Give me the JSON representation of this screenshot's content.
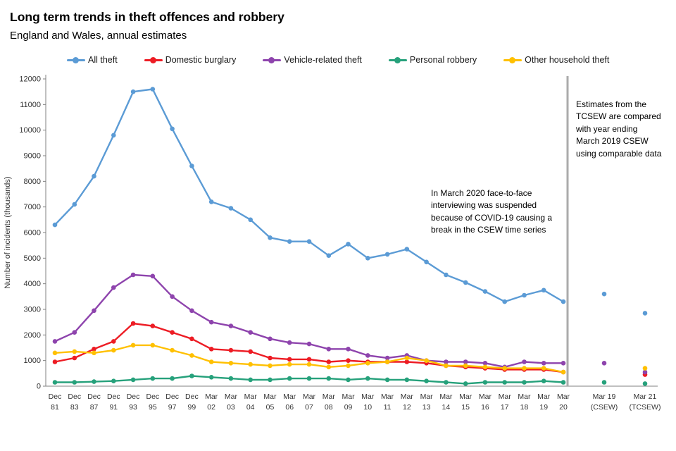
{
  "header": {
    "title": "Long term trends in theft offences and robbery",
    "subtitle": "England and Wales, annual estimates"
  },
  "annotations": {
    "covid_break": "In March 2020 face-to-face interviewing was suspended because of COVID-19 causing a break in the CSEW time series",
    "tcsew_note": "Estimates from the TCSEW are compared with year ending March 2019 CSEW using comparable data"
  },
  "chart_data": {
    "type": "line",
    "title": "Long term trends in theft offences and robbery",
    "subtitle": "England and Wales, annual estimates",
    "xlabel": "",
    "ylabel": "Number of incidents (thousands)",
    "ylim": [
      0,
      12000
    ],
    "ytick_step": 1000,
    "grid": false,
    "legend_position": "top",
    "break_after_index": 26,
    "divider_note": "vertical grey line marks break in CSEW time series after Mar 20",
    "categories": [
      [
        "Dec",
        "81"
      ],
      [
        "Dec",
        "83"
      ],
      [
        "Dec",
        "87"
      ],
      [
        "Dec",
        "91"
      ],
      [
        "Dec",
        "93"
      ],
      [
        "Dec",
        "95"
      ],
      [
        "Dec",
        "97"
      ],
      [
        "Dec",
        "99"
      ],
      [
        "Mar",
        "02"
      ],
      [
        "Mar",
        "03"
      ],
      [
        "Mar",
        "04"
      ],
      [
        "Mar",
        "05"
      ],
      [
        "Mar",
        "06"
      ],
      [
        "Mar",
        "07"
      ],
      [
        "Mar",
        "08"
      ],
      [
        "Mar",
        "09"
      ],
      [
        "Mar",
        "10"
      ],
      [
        "Mar",
        "11"
      ],
      [
        "Mar",
        "12"
      ],
      [
        "Mar",
        "13"
      ],
      [
        "Mar",
        "14"
      ],
      [
        "Mar",
        "15"
      ],
      [
        "Mar",
        "16"
      ],
      [
        "Mar",
        "17"
      ],
      [
        "Mar",
        "18"
      ],
      [
        "Mar",
        "19"
      ],
      [
        "Mar",
        "20"
      ],
      [
        "Mar 19",
        "(CSEW)"
      ],
      [
        "Mar 21",
        "(TCSEW)"
      ]
    ],
    "series": [
      {
        "name": "All theft",
        "color": "#5B9BD5",
        "values": [
          6300,
          7100,
          8200,
          9800,
          11500,
          11600,
          10050,
          8600,
          7200,
          6950,
          6500,
          5800,
          5650,
          5650,
          5100,
          5550,
          5000,
          5150,
          5350,
          4850,
          4350,
          4050,
          3700,
          3300,
          3550,
          3750,
          3300,
          3600,
          2850
        ]
      },
      {
        "name": "Domestic burglary",
        "color": "#ED1C24",
        "values": [
          950,
          1100,
          1450,
          1750,
          2450,
          2350,
          2100,
          1850,
          1450,
          1400,
          1350,
          1100,
          1050,
          1050,
          950,
          1000,
          950,
          950,
          950,
          900,
          800,
          750,
          700,
          650,
          650,
          650,
          550,
          null,
          450
        ]
      },
      {
        "name": "Vehicle-related theft",
        "color": "#8E44AD",
        "values": [
          1750,
          2100,
          2950,
          3850,
          4350,
          4300,
          3500,
          2950,
          2500,
          2350,
          2100,
          1850,
          1700,
          1650,
          1450,
          1450,
          1200,
          1100,
          1200,
          1000,
          950,
          950,
          900,
          750,
          950,
          900,
          900,
          900,
          550
        ]
      },
      {
        "name": "Personal robbery",
        "color": "#26A17B",
        "values": [
          150,
          150,
          175,
          200,
          250,
          300,
          300,
          400,
          350,
          300,
          250,
          250,
          300,
          300,
          300,
          250,
          300,
          250,
          250,
          200,
          150,
          100,
          150,
          150,
          150,
          200,
          150,
          150,
          100
        ]
      },
      {
        "name": "Other household theft",
        "color": "#FFC000",
        "values": [
          1300,
          1350,
          1300,
          1400,
          1600,
          1600,
          1400,
          1200,
          950,
          900,
          850,
          800,
          850,
          850,
          750,
          800,
          900,
          950,
          1100,
          1000,
          800,
          800,
          750,
          700,
          700,
          700,
          550,
          null,
          700
        ]
      }
    ]
  },
  "style": {
    "divider_color": "#ABABAB",
    "axis_color": "#808080",
    "tick_label_color": "#333333"
  }
}
